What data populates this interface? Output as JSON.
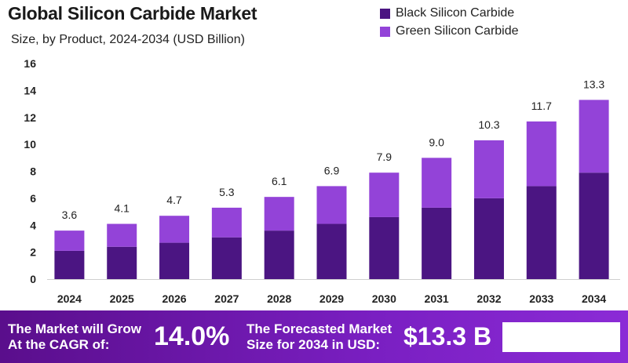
{
  "colors": {
    "black_sic": "#4b1582",
    "green_sic": "#9343d8",
    "label_text": "#222222"
  },
  "chart_data": {
    "type": "bar",
    "stacked": true,
    "title": "Global Silicon Carbide Market",
    "subtitle": "Size, by Product, 2024-2034 (USD Billion)",
    "categories": [
      "2024",
      "2025",
      "2026",
      "2027",
      "2028",
      "2029",
      "2030",
      "2031",
      "2032",
      "2033",
      "2034"
    ],
    "series": [
      {
        "name": "Black Silicon Carbide",
        "values": [
          2.1,
          2.4,
          2.7,
          3.1,
          3.6,
          4.1,
          4.6,
          5.3,
          6.0,
          6.9,
          7.9
        ]
      },
      {
        "name": "Green Silicon Carbide",
        "values": [
          1.5,
          1.7,
          2.0,
          2.2,
          2.5,
          2.8,
          3.3,
          3.7,
          4.3,
          4.8,
          5.4
        ]
      }
    ],
    "totals": [
      3.6,
      4.1,
      4.7,
      5.3,
      6.1,
      6.9,
      7.9,
      9.0,
      10.3,
      11.7,
      13.3
    ],
    "total_labels": [
      "3.6",
      "4.1",
      "4.7",
      "5.3",
      "6.1",
      "6.9",
      "7.9",
      "9.0",
      "10.3",
      "11.7",
      "13.3"
    ],
    "yticks": [
      "0",
      "2",
      "4",
      "6",
      "8",
      "10",
      "12",
      "14",
      "16"
    ],
    "ylim": [
      0,
      16
    ],
    "legend_position": "top-right",
    "grid": false
  },
  "banner": {
    "cagr_label": "The Market will Grow\nAt the CAGR of:",
    "cagr_value": "14.0%",
    "forecast_label": "The Forecasted Market\nSize for 2034 in USD:",
    "forecast_value": "$13.3 B"
  }
}
